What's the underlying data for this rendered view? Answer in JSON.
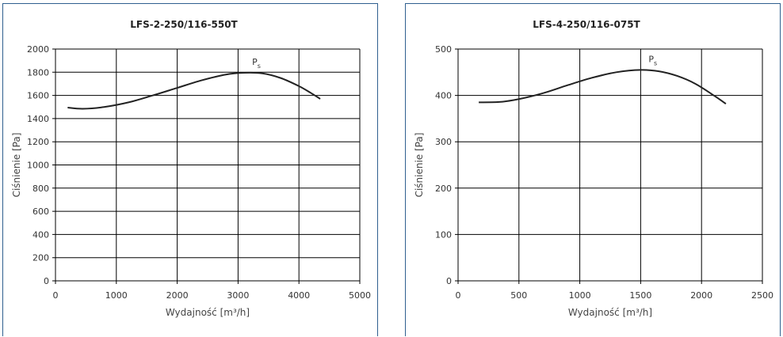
{
  "colors": {
    "panel_border": "#2f5f8f",
    "grid": "#000000",
    "curve": "#222222"
  },
  "chart_data": [
    {
      "type": "line",
      "title": "LFS-2-250/116-550T",
      "xlabel": "Wydajność [m³/h]",
      "ylabel": "Ciśnienie [Pa]",
      "xlim": [
        0,
        5000
      ],
      "ylim": [
        0,
        2000
      ],
      "xticks": [
        0,
        1000,
        2000,
        3000,
        4000,
        5000
      ],
      "yticks": [
        0,
        200,
        400,
        600,
        800,
        1000,
        1200,
        1400,
        1600,
        1800,
        2000
      ],
      "grid": true,
      "series": [
        {
          "name": "Ps",
          "x": [
            200,
            450,
            800,
            1200,
            1600,
            2000,
            2400,
            2800,
            3100,
            3400,
            3700,
            4000,
            4200,
            4350
          ],
          "y": [
            1495,
            1485,
            1500,
            1540,
            1600,
            1665,
            1730,
            1780,
            1795,
            1790,
            1750,
            1680,
            1620,
            1570
          ]
        }
      ]
    },
    {
      "type": "line",
      "title": "LFS-4-250/116-075T",
      "xlabel": "Wydajność [m³/h]",
      "ylabel": "Ciśnienie [Pa]",
      "xlim": [
        0,
        2500
      ],
      "ylim": [
        0,
        500
      ],
      "xticks": [
        0,
        500,
        1000,
        1500,
        2000,
        2500
      ],
      "yticks": [
        0,
        100,
        200,
        300,
        400,
        500
      ],
      "grid": true,
      "series": [
        {
          "name": "Ps",
          "x": [
            170,
            350,
            500,
            700,
            900,
            1100,
            1300,
            1500,
            1650,
            1800,
            1950,
            2100,
            2200
          ],
          "y": [
            385,
            386,
            392,
            405,
            422,
            438,
            450,
            455,
            452,
            442,
            425,
            400,
            382
          ]
        }
      ]
    }
  ]
}
